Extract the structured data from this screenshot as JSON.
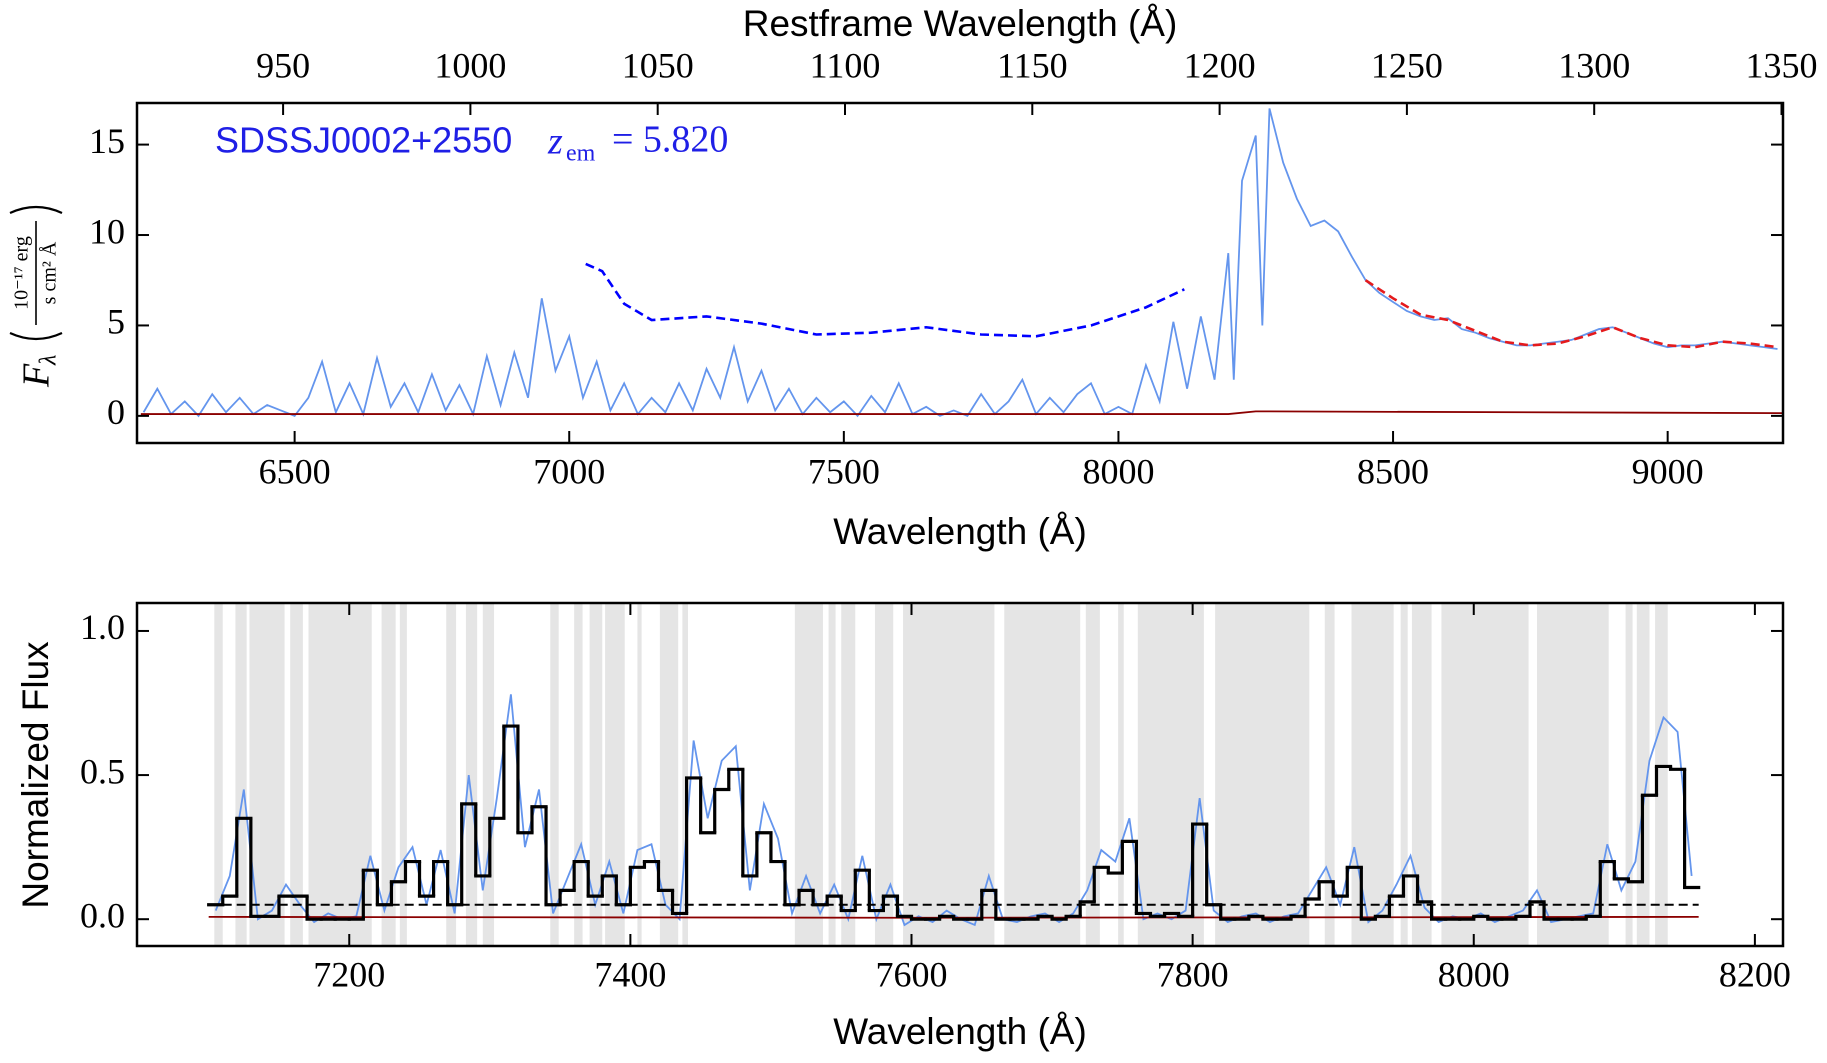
{
  "chart_data": [
    {
      "type": "line",
      "xlabel": "Wavelength (Å)",
      "x2label": "Restframe Wavelength (Å)",
      "ylabel": {
        "symbol": "F",
        "subscript": "λ",
        "unit_numerator": "10⁻¹⁷ erg",
        "unit_denominator": "s cm² Å"
      },
      "annotation": {
        "name": "SDSSJ0002+2550",
        "z_symbol": "z",
        "z_subscript": "em",
        "z_value": "= 5.820"
      },
      "xlim": [
        6213,
        9210
      ],
      "xticks": [
        6500,
        7000,
        7500,
        8000,
        8500,
        9000
      ],
      "x2lim": [
        911,
        1350.4
      ],
      "x2ticks": [
        950,
        1000,
        1050,
        1100,
        1150,
        1200,
        1250,
        1300,
        1350
      ],
      "ylim": [
        -1.5,
        17.3
      ],
      "yticks": [
        0,
        5,
        10,
        15
      ],
      "series": [
        {
          "color": "#6495ed",
          "x": [
            6225,
            6250,
            6275,
            6300,
            6325,
            6350,
            6375,
            6400,
            6425,
            6450,
            6475,
            6500,
            6525,
            6550,
            6575,
            6600,
            6625,
            6650,
            6675,
            6700,
            6725,
            6750,
            6775,
            6800,
            6825,
            6850,
            6875,
            6900,
            6925,
            6950,
            6975,
            7000,
            7025,
            7050,
            7075,
            7100,
            7125,
            7150,
            7175,
            7200,
            7225,
            7250,
            7275,
            7300,
            7325,
            7350,
            7375,
            7400,
            7425,
            7450,
            7475,
            7500,
            7525,
            7550,
            7575,
            7600,
            7625,
            7650,
            7675,
            7700,
            7725,
            7750,
            7775,
            7800,
            7825,
            7850,
            7875,
            7900,
            7925,
            7950,
            7975,
            8000,
            8025,
            8050,
            8075,
            8100,
            8125,
            8150,
            8175,
            8200,
            8210,
            8225,
            8250,
            8262,
            8275,
            8300,
            8325,
            8350,
            8375,
            8400,
            8425,
            8450,
            8475,
            8500,
            8525,
            8550,
            8575,
            8600,
            8625,
            8650,
            8675,
            8700,
            8725,
            8750,
            8775,
            8800,
            8825,
            8850,
            8875,
            8900,
            8925,
            8950,
            8975,
            9000,
            9025,
            9050,
            9075,
            9100,
            9125,
            9150,
            9175,
            9200
          ],
          "values": [
            0.2,
            1.5,
            0.1,
            0.8,
            0.0,
            1.2,
            0.2,
            1.0,
            0.1,
            0.6,
            0.3,
            0.0,
            1.0,
            3.0,
            0.2,
            1.8,
            0.1,
            3.2,
            0.5,
            1.8,
            0.2,
            2.3,
            0.3,
            1.7,
            0.1,
            3.3,
            0.6,
            3.5,
            1.0,
            6.5,
            2.5,
            4.4,
            1.0,
            3.0,
            0.3,
            1.8,
            0.1,
            1.0,
            0.2,
            1.8,
            0.3,
            2.6,
            1.0,
            3.8,
            0.8,
            2.5,
            0.3,
            1.5,
            0.1,
            1.0,
            0.2,
            0.8,
            0.0,
            1.1,
            0.2,
            1.8,
            0.1,
            0.5,
            0.0,
            0.3,
            0.0,
            1.2,
            0.1,
            0.8,
            2.0,
            0.1,
            1.0,
            0.2,
            1.2,
            1.8,
            0.1,
            0.5,
            0.1,
            2.8,
            0.8,
            5.2,
            1.5,
            5.5,
            2.0,
            9.0,
            2.0,
            13.0,
            15.5,
            5.0,
            17.0,
            14.0,
            12.0,
            10.5,
            10.8,
            10.2,
            8.8,
            7.5,
            6.8,
            6.3,
            5.8,
            5.5,
            5.3,
            5.4,
            4.8,
            4.6,
            4.3,
            4.1,
            3.9,
            3.9,
            4.0,
            4.1,
            4.2,
            4.5,
            4.8,
            4.9,
            4.6,
            4.3,
            4.0,
            3.8,
            3.9,
            3.9,
            4.0,
            4.1,
            4.0,
            3.9,
            3.8,
            3.7
          ]
        },
        {
          "color": "#8b0000",
          "x": [
            6220,
            7000,
            8000,
            8200,
            8250,
            9210
          ],
          "values": [
            0.1,
            0.1,
            0.1,
            0.1,
            0.25,
            0.15
          ]
        },
        {
          "color": "#0000ff",
          "linestyle": "dashed",
          "x": [
            7030,
            7060,
            7100,
            7150,
            7250,
            7350,
            7450,
            7550,
            7650,
            7750,
            7850,
            7950,
            8050,
            8120
          ],
          "values": [
            8.4,
            8.0,
            6.2,
            5.3,
            5.5,
            5.1,
            4.5,
            4.6,
            4.9,
            4.5,
            4.4,
            5.0,
            6.0,
            7.0
          ]
        },
        {
          "color": "#e41a1c",
          "linestyle": "dashed",
          "x": [
            8450,
            8500,
            8550,
            8600,
            8650,
            8700,
            8750,
            8800,
            8850,
            8900,
            8950,
            9000,
            9050,
            9100,
            9150,
            9200
          ],
          "values": [
            7.5,
            6.5,
            5.6,
            5.3,
            4.7,
            4.1,
            3.9,
            4.0,
            4.4,
            4.9,
            4.3,
            3.9,
            3.8,
            4.1,
            4.0,
            3.8
          ]
        }
      ]
    },
    {
      "type": "line",
      "xlabel": "Wavelength (Å)",
      "ylabel": "Normalized Flux",
      "xlim": [
        7049,
        8220
      ],
      "xticks": [
        7200,
        7400,
        7600,
        7800,
        8000,
        8200
      ],
      "ylim": [
        -0.093,
        1.097
      ],
      "yticks": [
        {
          "value": 0,
          "label": "0.0"
        },
        {
          "value": 0.5,
          "label": "0.5"
        },
        {
          "value": 1,
          "label": "1.0"
        }
      ],
      "masked_regions": [
        [
          7104,
          7110
        ],
        [
          7119,
          7127
        ],
        [
          7129,
          7154
        ],
        [
          7158,
          7167
        ],
        [
          7171,
          7216
        ],
        [
          7223,
          7233
        ],
        [
          7236,
          7241
        ],
        [
          7269,
          7276
        ],
        [
          7283,
          7291
        ],
        [
          7295,
          7303
        ],
        [
          7343,
          7349
        ],
        [
          7360,
          7366
        ],
        [
          7371,
          7380
        ],
        [
          7382,
          7396
        ],
        [
          7405,
          7408
        ],
        [
          7421,
          7434
        ],
        [
          7437,
          7441
        ],
        [
          7517,
          7537
        ],
        [
          7541,
          7546
        ],
        [
          7550,
          7560
        ],
        [
          7574,
          7587
        ],
        [
          7594,
          7659
        ],
        [
          7666,
          7720
        ],
        [
          7724,
          7734
        ],
        [
          7747,
          7751
        ],
        [
          7761,
          7808
        ],
        [
          7816,
          7883
        ],
        [
          7894,
          7901
        ],
        [
          7913,
          7943
        ],
        [
          7948,
          7953
        ],
        [
          7956,
          7970
        ],
        [
          7977,
          8039
        ],
        [
          8045,
          8096
        ],
        [
          8108,
          8113
        ],
        [
          8116,
          8125
        ],
        [
          8129,
          8138
        ]
      ],
      "masked_color": "#e5e5e5",
      "series": [
        {
          "color": "#6495ed",
          "x": [
            7105,
            7115,
            7125,
            7135,
            7145,
            7155,
            7165,
            7175,
            7185,
            7195,
            7205,
            7215,
            7225,
            7235,
            7245,
            7255,
            7265,
            7275,
            7285,
            7295,
            7305,
            7315,
            7325,
            7335,
            7345,
            7355,
            7365,
            7375,
            7385,
            7395,
            7405,
            7415,
            7425,
            7435,
            7445,
            7455,
            7465,
            7475,
            7485,
            7495,
            7505,
            7515,
            7525,
            7535,
            7545,
            7555,
            7565,
            7575,
            7585,
            7595,
            7605,
            7615,
            7625,
            7635,
            7645,
            7655,
            7665,
            7675,
            7685,
            7695,
            7705,
            7715,
            7725,
            7735,
            7745,
            7755,
            7765,
            7775,
            7785,
            7795,
            7805,
            7815,
            7825,
            7835,
            7845,
            7855,
            7865,
            7875,
            7885,
            7895,
            7905,
            7915,
            7925,
            7935,
            7945,
            7955,
            7965,
            7975,
            7985,
            7995,
            8005,
            8015,
            8025,
            8035,
            8045,
            8055,
            8065,
            8075,
            8085,
            8095,
            8105,
            8115,
            8125,
            8135,
            8145,
            8155
          ],
          "values": [
            0.03,
            0.15,
            0.45,
            0.0,
            0.03,
            0.12,
            0.05,
            -0.01,
            0.02,
            0.0,
            0.01,
            0.22,
            0.03,
            0.18,
            0.25,
            0.05,
            0.24,
            0.02,
            0.5,
            0.1,
            0.42,
            0.78,
            0.25,
            0.45,
            0.02,
            0.14,
            0.26,
            0.05,
            0.2,
            0.02,
            0.24,
            0.26,
            0.05,
            0.0,
            0.62,
            0.35,
            0.55,
            0.6,
            0.1,
            0.4,
            0.28,
            0.02,
            0.15,
            0.02,
            0.12,
            0.0,
            0.22,
            0.0,
            0.12,
            -0.02,
            0.01,
            -0.01,
            0.03,
            0.0,
            -0.02,
            0.15,
            0.0,
            -0.01,
            0.01,
            0.02,
            -0.01,
            0.02,
            0.1,
            0.24,
            0.2,
            0.35,
            0.0,
            0.02,
            0.0,
            0.03,
            0.42,
            0.03,
            -0.01,
            0.01,
            0.02,
            -0.01,
            0.01,
            0.02,
            0.1,
            0.18,
            0.05,
            0.25,
            -0.01,
            0.03,
            0.12,
            0.22,
            0.04,
            -0.01,
            0.01,
            0.0,
            0.02,
            -0.01,
            0.01,
            0.03,
            0.1,
            -0.01,
            0.0,
            0.01,
            0.02,
            0.26,
            0.1,
            0.2,
            0.55,
            0.7,
            0.65,
            0.15
          ]
        },
        {
          "color": "#8b0000",
          "x": [
            7100,
            7600,
            8160
          ],
          "values": [
            0.008,
            0.005,
            0.008
          ]
        },
        {
          "color": "#000000",
          "bins": [
            7100,
            7110,
            7120,
            7130,
            7140,
            7150,
            7160,
            7170,
            7180,
            7190,
            7200,
            7210,
            7220,
            7230,
            7240,
            7250,
            7260,
            7270,
            7280,
            7290,
            7300,
            7310,
            7320,
            7330,
            7340,
            7350,
            7360,
            7370,
            7380,
            7390,
            7400,
            7410,
            7420,
            7430,
            7440,
            7450,
            7460,
            7470,
            7480,
            7490,
            7500,
            7510,
            7520,
            7530,
            7540,
            7550,
            7560,
            7570,
            7580,
            7590,
            7600,
            7610,
            7620,
            7630,
            7640,
            7650,
            7660,
            7670,
            7680,
            7690,
            7700,
            7710,
            7720,
            7730,
            7740,
            7750,
            7760,
            7770,
            7780,
            7790,
            7800,
            7810,
            7820,
            7830,
            7840,
            7850,
            7860,
            7870,
            7880,
            7890,
            7900,
            7910,
            7920,
            7930,
            7940,
            7950,
            7960,
            7970,
            7980,
            7990,
            8000,
            8010,
            8020,
            8030,
            8040,
            8050,
            8060,
            8070,
            8080,
            8090,
            8100,
            8110,
            8120,
            8130,
            8140,
            8150,
            8160
          ],
          "values": [
            0.05,
            0.08,
            0.35,
            0.01,
            0.01,
            0.08,
            0.08,
            0.0,
            0.0,
            0.0,
            0.0,
            0.17,
            0.05,
            0.13,
            0.2,
            0.08,
            0.2,
            0.05,
            0.4,
            0.15,
            0.35,
            0.67,
            0.3,
            0.39,
            0.05,
            0.1,
            0.2,
            0.08,
            0.15,
            0.05,
            0.18,
            0.2,
            0.1,
            0.02,
            0.49,
            0.3,
            0.45,
            0.52,
            0.15,
            0.3,
            0.2,
            0.05,
            0.1,
            0.05,
            0.08,
            0.03,
            0.17,
            0.03,
            0.08,
            0.01,
            0.0,
            0.0,
            0.01,
            0.0,
            0.0,
            0.1,
            0.0,
            0.0,
            0.0,
            0.01,
            0.0,
            0.01,
            0.06,
            0.18,
            0.16,
            0.27,
            0.02,
            0.01,
            0.02,
            0.01,
            0.33,
            0.05,
            0.0,
            0.0,
            0.01,
            0.0,
            0.0,
            0.01,
            0.07,
            0.13,
            0.08,
            0.18,
            0.0,
            0.01,
            0.08,
            0.15,
            0.06,
            0.0,
            0.0,
            0.0,
            0.01,
            0.0,
            0.0,
            0.01,
            0.06,
            0.0,
            0.0,
            0.0,
            0.01,
            0.2,
            0.14,
            0.13,
            0.43,
            0.53,
            0.52,
            0.11
          ]
        }
      ],
      "threshold_line": {
        "y": 0.05,
        "x": [
          7100,
          8160
        ],
        "color": "#000000",
        "linestyle": "dashed"
      }
    }
  ]
}
